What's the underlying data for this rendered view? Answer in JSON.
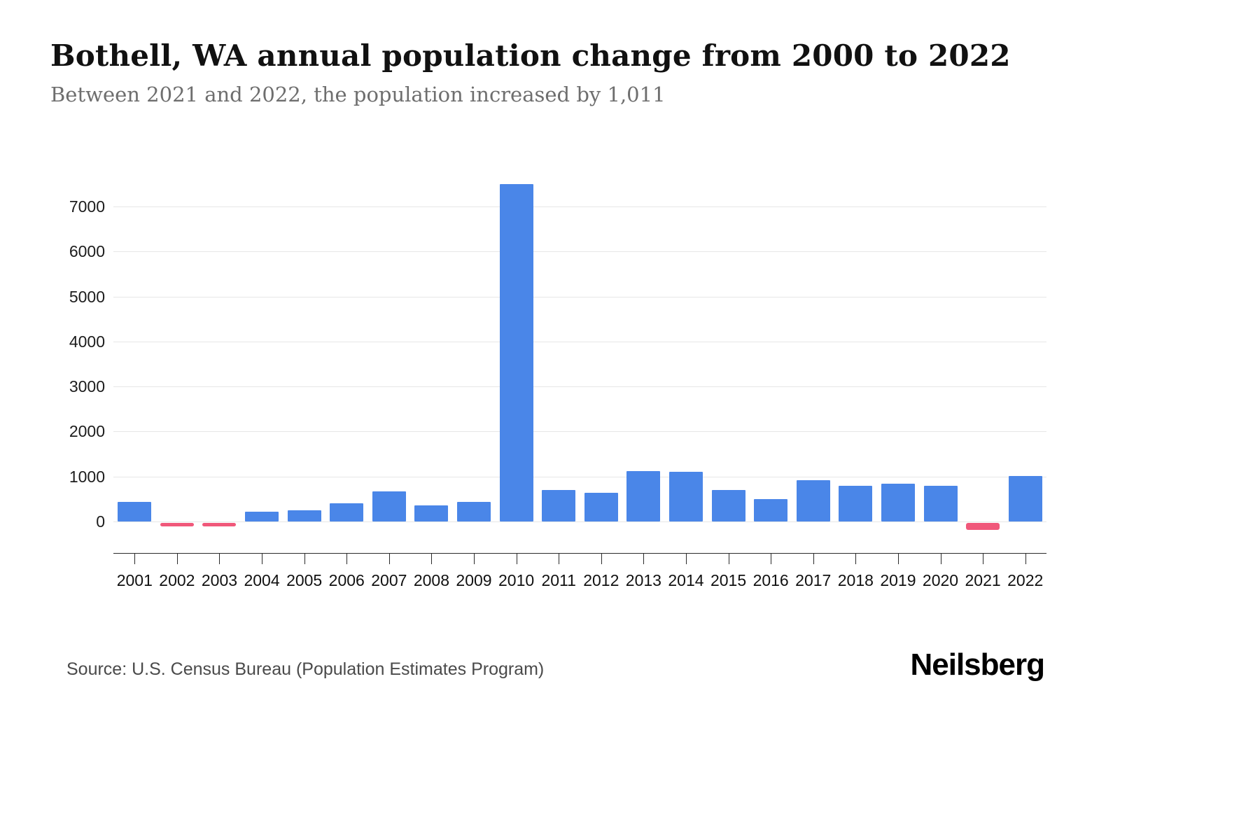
{
  "header": {
    "title": "Bothell, WA annual population change from 2000 to 2022",
    "subtitle": "Between 2021 and 2022, the population increased by 1,011"
  },
  "chart_data": {
    "type": "bar",
    "title": "Bothell, WA annual population change from 2000 to 2022",
    "subtitle": "Between 2021 and 2022, the population increased by 1,011",
    "categories": [
      "2001",
      "2002",
      "2003",
      "2004",
      "2005",
      "2006",
      "2007",
      "2008",
      "2009",
      "2010",
      "2011",
      "2012",
      "2013",
      "2014",
      "2015",
      "2016",
      "2017",
      "2018",
      "2019",
      "2020",
      "2021",
      "2022"
    ],
    "values": [
      430,
      -80,
      -80,
      220,
      250,
      410,
      670,
      360,
      430,
      7500,
      700,
      640,
      1120,
      1100,
      700,
      500,
      920,
      790,
      840,
      790,
      -150,
      1011
    ],
    "xlabel": "",
    "ylabel": "",
    "ylim": [
      -300,
      7600
    ],
    "yticks": [
      0,
      1000,
      2000,
      3000,
      4000,
      5000,
      6000,
      7000
    ],
    "grid": true,
    "legend": "none",
    "positive_color": "#4a86e8",
    "negative_color": "#f0587a"
  },
  "footer": {
    "source": "Source: U.S. Census Bureau (Population Estimates Program)",
    "brand": "Neilsberg"
  }
}
